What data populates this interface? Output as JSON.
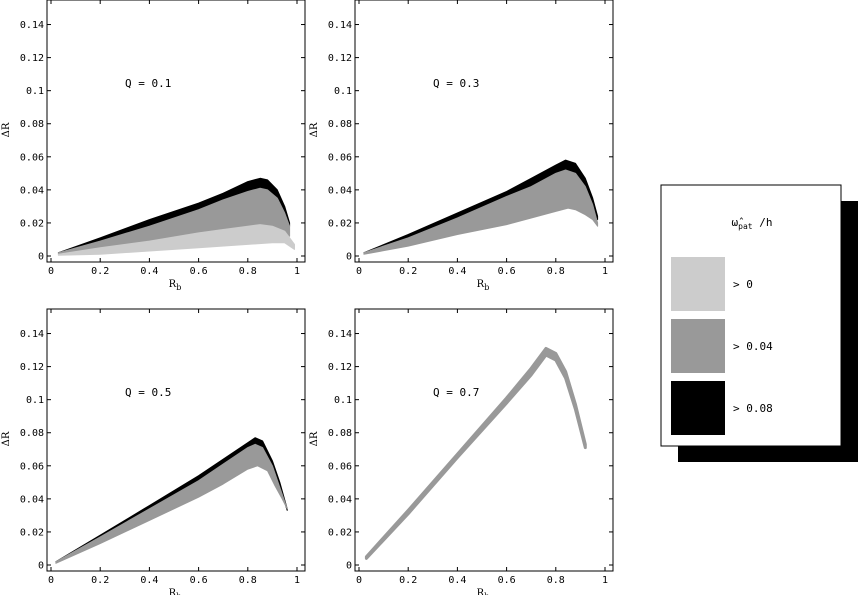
{
  "chart_data": [
    {
      "type": "area",
      "annotation": "Q = 0.1",
      "xlabel": "R",
      "xlabel_sub": "b",
      "ylabel": "ΔR",
      "xlim": [
        0,
        1
      ],
      "ylim": [
        0,
        0.15
      ],
      "xticks": [
        "0",
        "0.2",
        "0.4",
        "0.6",
        "0.8",
        "1"
      ],
      "yticks": [
        "0",
        "0.02",
        "0.04",
        "0.06",
        "0.08",
        "0.1",
        "0.12",
        "0.14"
      ],
      "bands": [
        {
          "legend": "> 0.08",
          "color": "#000000",
          "upper": [
            [
              0.03,
              0.002
            ],
            [
              0.2,
              0.011
            ],
            [
              0.4,
              0.022
            ],
            [
              0.6,
              0.032
            ],
            [
              0.7,
              0.038
            ],
            [
              0.8,
              0.045
            ],
            [
              0.85,
              0.047
            ],
            [
              0.88,
              0.046
            ],
            [
              0.92,
              0.04
            ],
            [
              0.95,
              0.03
            ],
            [
              0.97,
              0.02
            ]
          ],
          "lower": [
            [
              0.03,
              0.002
            ],
            [
              0.2,
              0.009
            ],
            [
              0.4,
              0.018
            ],
            [
              0.6,
              0.028
            ],
            [
              0.7,
              0.034
            ],
            [
              0.8,
              0.039
            ],
            [
              0.85,
              0.041
            ],
            [
              0.88,
              0.04
            ],
            [
              0.92,
              0.035
            ],
            [
              0.95,
              0.026
            ],
            [
              0.97,
              0.018
            ]
          ]
        },
        {
          "legend": "> 0.04",
          "color": "#999999",
          "upper": [
            [
              0.03,
              0.002
            ],
            [
              0.2,
              0.009
            ],
            [
              0.4,
              0.018
            ],
            [
              0.6,
              0.028
            ],
            [
              0.7,
              0.034
            ],
            [
              0.8,
              0.039
            ],
            [
              0.85,
              0.041
            ],
            [
              0.88,
              0.04
            ],
            [
              0.92,
              0.035
            ],
            [
              0.95,
              0.026
            ],
            [
              0.97,
              0.018
            ]
          ],
          "lower": [
            [
              0.03,
              0.001
            ],
            [
              0.2,
              0.005
            ],
            [
              0.4,
              0.009
            ],
            [
              0.6,
              0.014
            ],
            [
              0.7,
              0.016
            ],
            [
              0.8,
              0.018
            ],
            [
              0.85,
              0.019
            ],
            [
              0.9,
              0.018
            ],
            [
              0.95,
              0.015
            ],
            [
              0.97,
              0.012
            ]
          ]
        },
        {
          "legend": "> 0",
          "color": "#cccccc",
          "upper": [
            [
              0.03,
              0.001
            ],
            [
              0.2,
              0.005
            ],
            [
              0.4,
              0.009
            ],
            [
              0.6,
              0.014
            ],
            [
              0.7,
              0.016
            ],
            [
              0.8,
              0.018
            ],
            [
              0.85,
              0.019
            ],
            [
              0.9,
              0.018
            ],
            [
              0.95,
              0.015
            ],
            [
              0.99,
              0.007
            ]
          ],
          "lower": [
            [
              0.03,
              0.0005
            ],
            [
              0.2,
              0.001
            ],
            [
              0.4,
              0.003
            ],
            [
              0.6,
              0.005
            ],
            [
              0.8,
              0.007
            ],
            [
              0.9,
              0.008
            ],
            [
              0.95,
              0.008
            ],
            [
              0.99,
              0.004
            ]
          ]
        }
      ]
    },
    {
      "type": "area",
      "annotation": "Q = 0.3",
      "xlabel": "R",
      "xlabel_sub": "b",
      "ylabel": "ΔR",
      "xlim": [
        0,
        1
      ],
      "ylim": [
        0,
        0.15
      ],
      "xticks": [
        "0",
        "0.2",
        "0.4",
        "0.6",
        "0.8",
        "1"
      ],
      "yticks": [
        "0",
        "0.02",
        "0.04",
        "0.06",
        "0.08",
        "0.1",
        "0.12",
        "0.14"
      ],
      "bands": [
        {
          "legend": "> 0.08",
          "color": "#000000",
          "upper": [
            [
              0.02,
              0.002
            ],
            [
              0.2,
              0.013
            ],
            [
              0.4,
              0.026
            ],
            [
              0.6,
              0.039
            ],
            [
              0.7,
              0.047
            ],
            [
              0.8,
              0.055
            ],
            [
              0.84,
              0.058
            ],
            [
              0.88,
              0.056
            ],
            [
              0.92,
              0.047
            ],
            [
              0.95,
              0.035
            ],
            [
              0.97,
              0.024
            ]
          ],
          "lower": [
            [
              0.02,
              0.002
            ],
            [
              0.2,
              0.011
            ],
            [
              0.4,
              0.023
            ],
            [
              0.6,
              0.036
            ],
            [
              0.7,
              0.042
            ],
            [
              0.8,
              0.05
            ],
            [
              0.84,
              0.052
            ],
            [
              0.88,
              0.05
            ],
            [
              0.92,
              0.042
            ],
            [
              0.95,
              0.031
            ],
            [
              0.97,
              0.022
            ]
          ]
        },
        {
          "legend": "> 0.04",
          "color": "#999999",
          "upper": [
            [
              0.02,
              0.002
            ],
            [
              0.2,
              0.011
            ],
            [
              0.4,
              0.023
            ],
            [
              0.6,
              0.036
            ],
            [
              0.7,
              0.042
            ],
            [
              0.8,
              0.05
            ],
            [
              0.84,
              0.052
            ],
            [
              0.88,
              0.05
            ],
            [
              0.92,
              0.042
            ],
            [
              0.95,
              0.031
            ],
            [
              0.97,
              0.02
            ]
          ],
          "lower": [
            [
              0.02,
              0.001
            ],
            [
              0.2,
              0.006
            ],
            [
              0.4,
              0.013
            ],
            [
              0.6,
              0.019
            ],
            [
              0.7,
              0.023
            ],
            [
              0.8,
              0.027
            ],
            [
              0.85,
              0.029
            ],
            [
              0.88,
              0.028
            ],
            [
              0.92,
              0.025
            ],
            [
              0.95,
              0.022
            ],
            [
              0.97,
              0.018
            ]
          ]
        }
      ]
    },
    {
      "type": "area",
      "annotation": "Q = 0.5",
      "xlabel": "R",
      "xlabel_sub": "b",
      "ylabel": "ΔR",
      "xlim": [
        0,
        1
      ],
      "ylim": [
        0,
        0.15
      ],
      "xticks": [
        "0",
        "0.2",
        "0.4",
        "0.6",
        "0.8",
        "1"
      ],
      "yticks": [
        "0",
        "0.02",
        "0.04",
        "0.06",
        "0.08",
        "0.1",
        "0.12",
        "0.14"
      ],
      "bands": [
        {
          "legend": "> 0.08",
          "color": "#000000",
          "upper": [
            [
              0.02,
              0.002
            ],
            [
              0.2,
              0.018
            ],
            [
              0.4,
              0.036
            ],
            [
              0.6,
              0.054
            ],
            [
              0.7,
              0.064
            ],
            [
              0.8,
              0.074
            ],
            [
              0.83,
              0.077
            ],
            [
              0.86,
              0.075
            ],
            [
              0.9,
              0.063
            ],
            [
              0.93,
              0.05
            ],
            [
              0.96,
              0.034
            ]
          ],
          "lower": [
            [
              0.02,
              0.002
            ],
            [
              0.2,
              0.017
            ],
            [
              0.4,
              0.034
            ],
            [
              0.6,
              0.051
            ],
            [
              0.7,
              0.061
            ],
            [
              0.8,
              0.071
            ],
            [
              0.83,
              0.073
            ],
            [
              0.86,
              0.071
            ],
            [
              0.9,
              0.06
            ],
            [
              0.93,
              0.047
            ],
            [
              0.96,
              0.033
            ]
          ]
        },
        {
          "legend": "> 0.04",
          "color": "#999999",
          "upper": [
            [
              0.02,
              0.002
            ],
            [
              0.2,
              0.017
            ],
            [
              0.4,
              0.034
            ],
            [
              0.6,
              0.051
            ],
            [
              0.7,
              0.061
            ],
            [
              0.8,
              0.071
            ],
            [
              0.83,
              0.073
            ],
            [
              0.86,
              0.071
            ],
            [
              0.9,
              0.06
            ],
            [
              0.93,
              0.047
            ],
            [
              0.96,
              0.034
            ]
          ],
          "lower": [
            [
              0.02,
              0.001
            ],
            [
              0.2,
              0.013
            ],
            [
              0.4,
              0.027
            ],
            [
              0.6,
              0.041
            ],
            [
              0.7,
              0.049
            ],
            [
              0.8,
              0.058
            ],
            [
              0.84,
              0.06
            ],
            [
              0.88,
              0.057
            ],
            [
              0.91,
              0.048
            ],
            [
              0.94,
              0.04
            ],
            [
              0.96,
              0.034
            ]
          ]
        }
      ]
    },
    {
      "type": "area",
      "annotation": "Q = 0.7",
      "xlabel": "R",
      "xlabel_sub": "b",
      "ylabel": "ΔR",
      "xlim": [
        0,
        1
      ],
      "ylim": [
        0,
        0.15
      ],
      "xticks": [
        "0",
        "0.2",
        "0.4",
        "0.6",
        "0.8",
        "1"
      ],
      "yticks": [
        "0",
        "0.02",
        "0.04",
        "0.06",
        "0.08",
        "0.1",
        "0.12",
        "0.14"
      ],
      "bands": [
        {
          "legend": "> 0.04",
          "color": "#999999",
          "upper": [
            [
              0.03,
              0.005
            ],
            [
              0.2,
              0.033
            ],
            [
              0.4,
              0.067
            ],
            [
              0.6,
              0.101
            ],
            [
              0.7,
              0.119
            ],
            [
              0.76,
              0.131
            ],
            [
              0.8,
              0.128
            ],
            [
              0.84,
              0.117
            ],
            [
              0.88,
              0.097
            ],
            [
              0.92,
              0.073
            ]
          ],
          "lower": [
            [
              0.03,
              0.004
            ],
            [
              0.2,
              0.031
            ],
            [
              0.4,
              0.065
            ],
            [
              0.6,
              0.098
            ],
            [
              0.7,
              0.115
            ],
            [
              0.76,
              0.127
            ],
            [
              0.8,
              0.124
            ],
            [
              0.84,
              0.113
            ],
            [
              0.88,
              0.094
            ],
            [
              0.92,
              0.071
            ]
          ]
        }
      ]
    }
  ],
  "legend": {
    "title": "ω̂",
    "title_sub": "pat",
    "title_suffix": " /h",
    "items": [
      {
        "label": "> 0",
        "color": "#cccccc"
      },
      {
        "label": "> 0.04",
        "color": "#999999"
      },
      {
        "label": "> 0.08",
        "color": "#000000"
      }
    ]
  }
}
